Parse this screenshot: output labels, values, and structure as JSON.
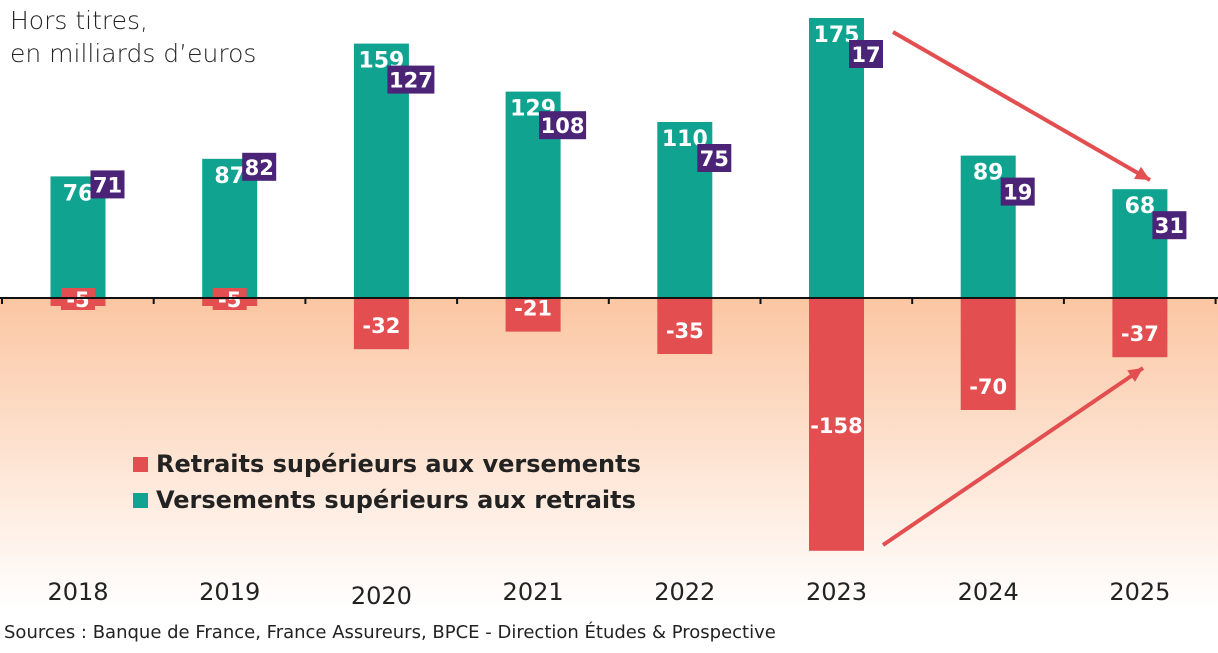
{
  "unit_label_lines": [
    "Hors titres,",
    "en milliards d’euros"
  ],
  "source": "Sources : Banque de France, France Assureurs, BPCE - Direction Études & Prospective",
  "colors": {
    "versements": "#0fa390",
    "retraits": "#e34f50",
    "net": "#4b2478",
    "arrow": "#e34f50",
    "negative_zone": "#fbc6a2"
  },
  "chart_data": {
    "type": "bar",
    "categories": [
      "2018",
      "2019",
      "2020",
      "2021",
      "2022",
      "2023",
      "2024",
      "2025"
    ],
    "series": [
      {
        "name": "Versements supérieurs aux retraits",
        "values": [
          76,
          87,
          159,
          129,
          110,
          175,
          89,
          68
        ]
      },
      {
        "name": "Retraits supérieurs aux versements",
        "values": [
          -5,
          -5,
          -32,
          -21,
          -35,
          -158,
          -70,
          -37
        ]
      },
      {
        "values": [
          71,
          82,
          127,
          108,
          75,
          17,
          19,
          31
        ]
      }
    ],
    "ylim": [
      -160,
      175
    ],
    "grid": false,
    "legend": "bottom-left",
    "annotations": [
      "arrow down from 2023 to 2025 (versements)",
      "arrow up from 2023 to 2025 (retraits)"
    ]
  }
}
